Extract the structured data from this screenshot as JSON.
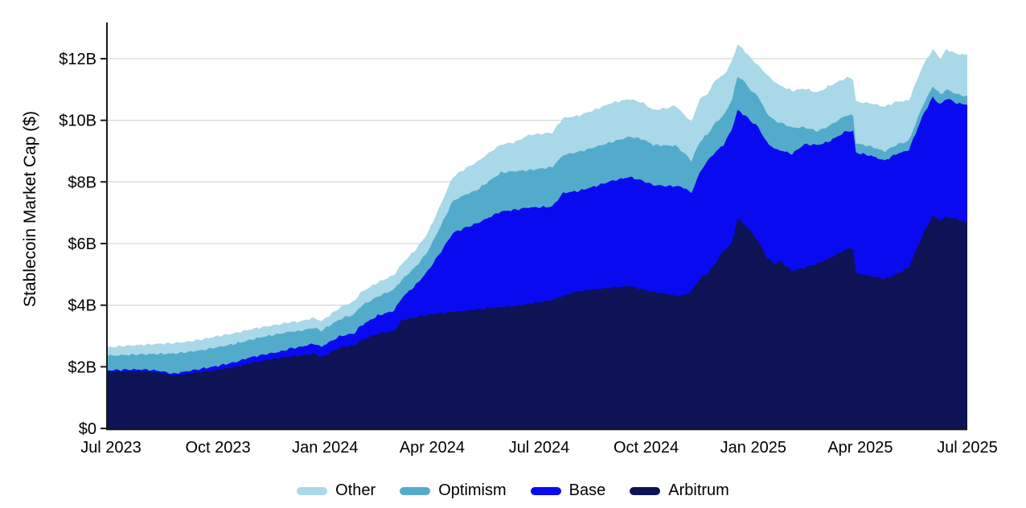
{
  "chart_data": {
    "type": "area",
    "stacked": true,
    "title": "",
    "xlabel": "",
    "ylabel": "Stablecoin Market Cap ($)",
    "ylim": [
      0,
      13.1
    ],
    "y_unit": "billions_usd",
    "grid": true,
    "legend_position": "bottom",
    "text_color": "#000000",
    "grid_color": "#d9d9d9",
    "axis_color": "#1a1a1a",
    "background_color": "#ffffff",
    "y_ticks": [
      {
        "v": 0,
        "label": "$0"
      },
      {
        "v": 2,
        "label": "$2B"
      },
      {
        "v": 4,
        "label": "$4B"
      },
      {
        "v": 6,
        "label": "$6B"
      },
      {
        "v": 8,
        "label": "$8B"
      },
      {
        "v": 10,
        "label": "$10B"
      },
      {
        "v": 12,
        "label": "$12B"
      }
    ],
    "x_ticks": [
      {
        "t": 0,
        "label": "Jul 2023"
      },
      {
        "t": 3,
        "label": "Oct 2023"
      },
      {
        "t": 6,
        "label": "Jan 2024"
      },
      {
        "t": 9,
        "label": "Apr 2024"
      },
      {
        "t": 12,
        "label": "Jul 2024"
      },
      {
        "t": 15,
        "label": "Oct 2024"
      },
      {
        "t": 18,
        "label": "Jan 2025"
      },
      {
        "t": 21,
        "label": "Apr 2025"
      },
      {
        "t": 24,
        "label": "Jul 2025"
      }
    ],
    "t_months_since_jul_2023": [
      0,
      0.5,
      1.0,
      1.4,
      1.75,
      2.1,
      2.6,
      3.0,
      3.5,
      3.88,
      4.3,
      4.78,
      5.0,
      5.3,
      5.68,
      5.9,
      6.04,
      6.4,
      6.58,
      6.81,
      7.0,
      7.48,
      7.93,
      8.16,
      8.55,
      8.88,
      9.25,
      9.58,
      9.95,
      10.25,
      10.6,
      10.93,
      11.35,
      11.7,
      12.05,
      12.37,
      12.67,
      13.12,
      13.6,
      14.02,
      14.54,
      14.92,
      15.2,
      15.6,
      15.82,
      16.05,
      16.27,
      16.5,
      16.72,
      16.95,
      17.17,
      17.4,
      17.56,
      17.78,
      17.92,
      18.14,
      18.37,
      18.59,
      18.75,
      19.09,
      19.43,
      19.81,
      20.1,
      20.62,
      20.8,
      20.88,
      21.3,
      21.68,
      22.0,
      22.36,
      22.74,
      23.03,
      23.25,
      23.42,
      23.71,
      24.0
    ],
    "series": [
      {
        "name": "Arbitrum",
        "color": "#0d1355",
        "values": [
          1.85,
          1.86,
          1.85,
          1.8,
          1.71,
          1.77,
          1.84,
          1.9,
          2.0,
          2.11,
          2.2,
          2.3,
          2.33,
          2.36,
          2.43,
          2.32,
          2.4,
          2.62,
          2.66,
          2.69,
          2.85,
          3.08,
          3.16,
          3.52,
          3.61,
          3.68,
          3.74,
          3.78,
          3.82,
          3.86,
          3.9,
          3.94,
          3.98,
          4.04,
          4.1,
          4.17,
          4.3,
          4.46,
          4.52,
          4.57,
          4.62,
          4.51,
          4.42,
          4.36,
          4.3,
          4.33,
          4.45,
          4.85,
          5.03,
          5.38,
          5.77,
          6.0,
          6.81,
          6.6,
          6.42,
          6.08,
          5.56,
          5.35,
          5.43,
          5.11,
          5.22,
          5.35,
          5.5,
          5.82,
          5.85,
          5.03,
          4.95,
          4.85,
          5.0,
          5.22,
          6.26,
          6.9,
          6.75,
          6.86,
          6.8,
          6.68
        ]
      },
      {
        "name": "Base",
        "color": "#0a0af0",
        "values": [
          0.04,
          0.05,
          0.06,
          0.06,
          0.06,
          0.08,
          0.11,
          0.13,
          0.16,
          0.19,
          0.2,
          0.2,
          0.26,
          0.28,
          0.32,
          0.33,
          0.35,
          0.36,
          0.38,
          0.39,
          0.48,
          0.58,
          0.66,
          0.73,
          1.05,
          1.43,
          2.0,
          2.56,
          2.7,
          2.79,
          2.95,
          3.1,
          3.12,
          3.13,
          3.08,
          3.03,
          3.34,
          3.25,
          3.35,
          3.46,
          3.54,
          3.52,
          3.48,
          3.5,
          3.57,
          3.49,
          3.19,
          3.45,
          3.66,
          3.6,
          3.44,
          3.7,
          3.52,
          3.55,
          3.57,
          3.7,
          3.74,
          3.73,
          3.6,
          3.8,
          4.0,
          3.85,
          3.8,
          3.83,
          3.8,
          3.92,
          3.9,
          3.84,
          3.9,
          3.81,
          3.86,
          3.85,
          3.75,
          3.86,
          3.75,
          3.83
        ]
      },
      {
        "name": "Optimism",
        "color": "#53abcc",
        "values": [
          0.47,
          0.48,
          0.5,
          0.56,
          0.66,
          0.62,
          0.6,
          0.61,
          0.59,
          0.57,
          0.58,
          0.58,
          0.55,
          0.52,
          0.52,
          0.52,
          0.53,
          0.55,
          0.58,
          0.61,
          0.64,
          0.62,
          0.69,
          0.58,
          0.6,
          0.63,
          0.85,
          1.04,
          1.08,
          1.08,
          1.18,
          1.26,
          1.25,
          1.21,
          1.25,
          1.28,
          1.23,
          1.27,
          1.27,
          1.26,
          1.31,
          1.35,
          1.3,
          1.32,
          1.31,
          1.13,
          1.05,
          1.0,
          0.86,
          0.95,
          0.95,
          0.95,
          1.1,
          1.08,
          0.99,
          1.0,
          0.95,
          0.91,
          0.9,
          0.85,
          0.55,
          0.45,
          0.5,
          0.52,
          0.5,
          0.3,
          0.3,
          0.3,
          0.3,
          0.3,
          0.33,
          0.35,
          0.35,
          0.28,
          0.3,
          0.26
        ]
      },
      {
        "name": "Other",
        "color": "#a9d8e8",
        "values": [
          0.28,
          0.3,
          0.31,
          0.33,
          0.34,
          0.34,
          0.35,
          0.36,
          0.35,
          0.34,
          0.32,
          0.31,
          0.31,
          0.31,
          0.32,
          0.31,
          0.32,
          0.38,
          0.4,
          0.43,
          0.44,
          0.46,
          0.47,
          0.52,
          0.56,
          0.6,
          0.7,
          0.78,
          0.85,
          0.91,
          0.92,
          0.91,
          0.95,
          1.14,
          1.13,
          1.12,
          1.2,
          1.17,
          1.22,
          1.27,
          1.22,
          1.18,
          1.13,
          1.22,
          1.3,
          1.25,
          1.25,
          1.39,
          1.31,
          1.4,
          1.3,
          1.25,
          1.04,
          1.0,
          1.05,
          1.0,
          1.25,
          1.26,
          1.2,
          1.2,
          1.26,
          1.25,
          1.3,
          1.21,
          1.2,
          1.35,
          1.4,
          1.45,
          1.4,
          1.31,
          1.29,
          1.2,
          1.15,
          1.3,
          1.3,
          1.36
        ]
      }
    ],
    "legend_order": [
      "Other",
      "Optimism",
      "Base",
      "Arbitrum"
    ]
  }
}
